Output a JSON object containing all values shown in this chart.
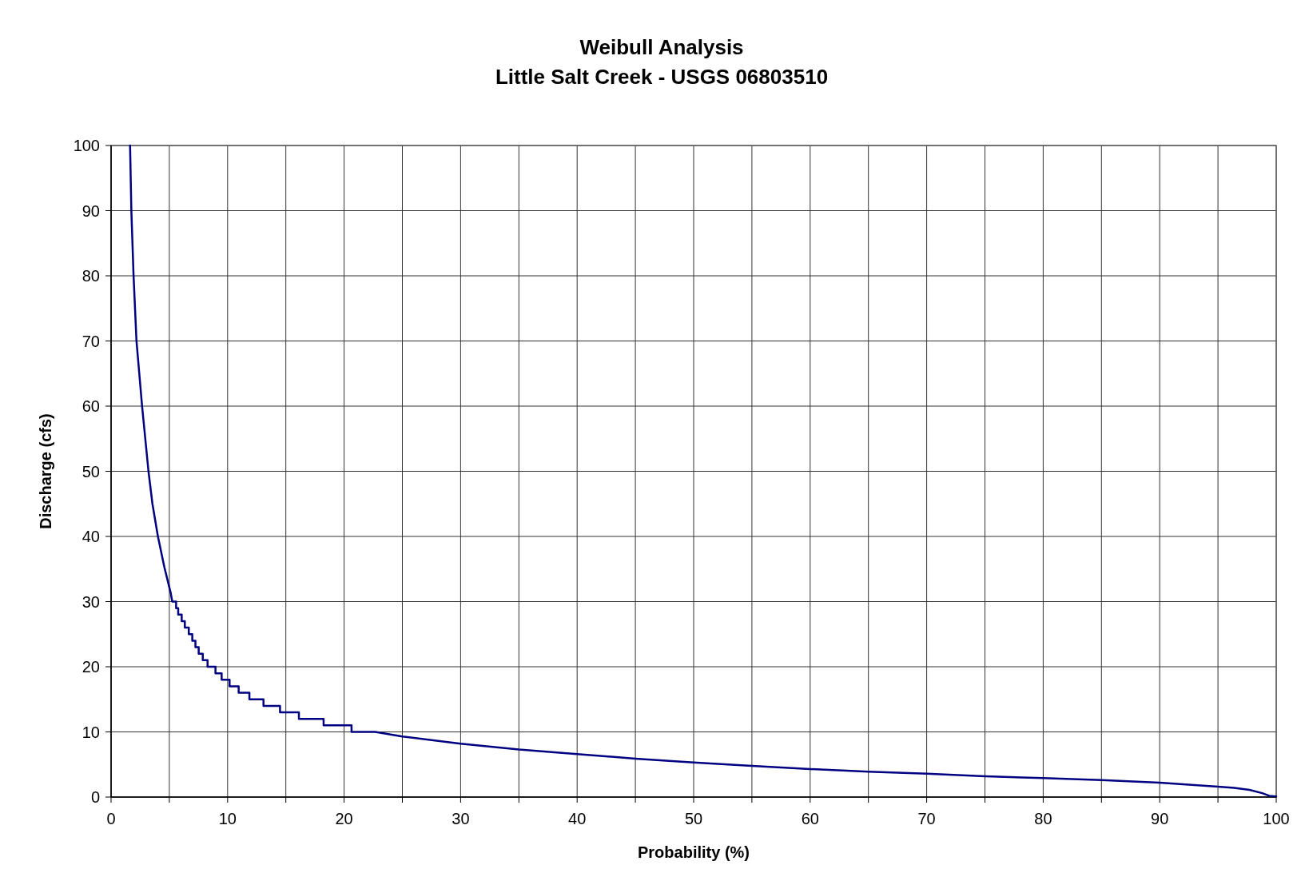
{
  "chart_data": {
    "type": "line",
    "title": "Weibull Analysis",
    "subtitle": "Little Salt Creek - USGS 06803510",
    "xlabel": "Probability (%)",
    "ylabel": "Discharge (cfs)",
    "xlim": [
      0,
      100
    ],
    "ylim": [
      0,
      100
    ],
    "xticks": [
      0,
      {
        "value": 5,
        "label": null
      },
      10,
      {
        "value": 15,
        "label": null
      },
      20,
      {
        "value": 25,
        "label": null
      },
      30,
      {
        "value": 35,
        "label": null
      },
      40,
      {
        "value": 45,
        "label": null
      },
      50,
      {
        "value": 55,
        "label": null
      },
      60,
      {
        "value": 65,
        "label": null
      },
      70,
      {
        "value": 75,
        "label": null
      },
      80,
      {
        "value": 85,
        "label": null
      },
      90,
      {
        "value": 95,
        "label": null
      },
      100
    ],
    "yticks": [
      0,
      10,
      20,
      30,
      40,
      50,
      60,
      70,
      80,
      90,
      100
    ],
    "grid": true,
    "marker": "none",
    "line_style": "solid",
    "series": [
      {
        "color": "#000080",
        "x": [
          1.63,
          1.74,
          1.93,
          2.18,
          2.66,
          3.21,
          3.55,
          4.02,
          4.57,
          5.12,
          5.25,
          5.58,
          5.58,
          5.76,
          5.76,
          6.06,
          6.06,
          6.33,
          6.33,
          6.67,
          6.67,
          6.97,
          6.97,
          7.24,
          7.24,
          7.52,
          7.52,
          7.87,
          7.87,
          8.28,
          8.28,
          8.96,
          8.96,
          9.49,
          9.49,
          10.17,
          10.17,
          10.95,
          10.95,
          11.87,
          11.87,
          13.08,
          13.08,
          14.5,
          14.5,
          16.12,
          16.12,
          18.24,
          18.24,
          20.64,
          20.64,
          22.67,
          25,
          30,
          35,
          40,
          45,
          50,
          55,
          60,
          65,
          70,
          75,
          80,
          85,
          90,
          95,
          96.4,
          97.7,
          98.8,
          99.4,
          100
        ],
        "values": [
          100,
          90,
          80,
          70,
          60,
          50,
          45,
          40,
          35.3,
          31.3,
          30,
          30,
          29,
          29,
          28,
          28,
          27,
          27,
          26,
          26,
          25,
          25,
          24,
          24,
          23,
          23,
          22,
          22,
          21,
          21,
          20,
          20,
          19,
          19,
          18,
          18,
          17,
          17,
          16,
          16,
          15,
          15,
          14,
          14,
          13,
          13,
          12,
          12,
          11,
          11,
          10,
          10,
          9.3,
          8.2,
          7.3,
          6.6,
          5.9,
          5.3,
          4.8,
          4.3,
          3.9,
          3.6,
          3.2,
          2.9,
          2.6,
          2.2,
          1.6,
          1.4,
          1.1,
          0.6,
          0.2,
          0.1
        ]
      }
    ]
  }
}
